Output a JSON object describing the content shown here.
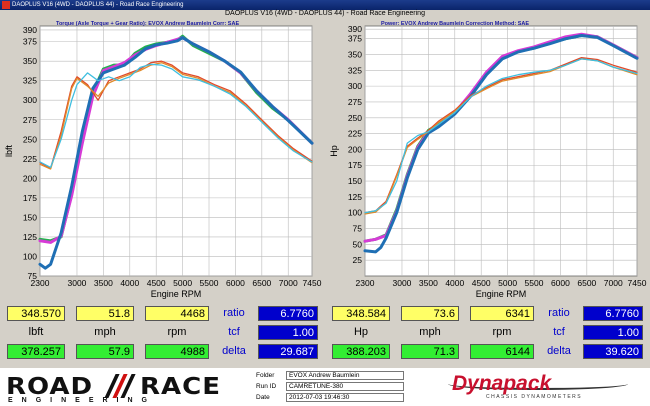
{
  "window": {
    "title": "DAOPLUS V16 (4WD - DAOPLUS 44) - Road Race Engineering"
  },
  "header": {
    "title": "DAOPLUS V16 (4WD - DAOPLUS 44) - Road Race Engineering"
  },
  "colors": {
    "blue": "#1f6fb4",
    "green": "#22b14c",
    "magenta": "#d63bd6",
    "cyan": "#3fbfe0",
    "red": "#e04a2a",
    "orange": "#e08a2a"
  },
  "chart_data": [
    {
      "type": "line",
      "subtitle": "Torque (Axle Torque + Gear Ratio): EVOX Andrew Baumlein    Corr: SAE",
      "ylabel": "lbft",
      "xlabel": "Engine RPM",
      "xlim": [
        2300,
        7450
      ],
      "ylim": [
        75,
        395
      ],
      "xticks": [
        "2300",
        "3000",
        "3500",
        "4000",
        "4500",
        "5000",
        "5500",
        "6000",
        "6500",
        "7000",
        "7450"
      ],
      "yticks": [
        "75",
        "100",
        "125",
        "150",
        "175",
        "200",
        "225",
        "250",
        "275",
        "300",
        "325",
        "350",
        "375",
        "390"
      ],
      "series": [
        {
          "color": "#22b14c",
          "x": [
            2300,
            2500,
            2700,
            2900,
            3100,
            3300,
            3500,
            3700,
            3900,
            4100,
            4300,
            4500,
            4700,
            4900,
            5000,
            5200,
            5500,
            5800,
            6100,
            6400,
            6700,
            7000,
            7450
          ],
          "y": [
            122,
            120,
            125,
            180,
            250,
            310,
            340,
            345,
            345,
            360,
            368,
            372,
            374,
            377,
            382,
            370,
            360,
            350,
            335,
            310,
            290,
            275,
            245
          ]
        },
        {
          "color": "#d63bd6",
          "x": [
            2300,
            2500,
            2700,
            2900,
            3100,
            3300,
            3500,
            3700,
            3900,
            4100,
            4300,
            4500,
            4700,
            4900,
            5000,
            5200,
            5500,
            5800,
            6100,
            6400,
            6700,
            7000,
            7450
          ],
          "y": [
            120,
            118,
            126,
            178,
            245,
            305,
            338,
            343,
            348,
            358,
            365,
            370,
            374,
            378,
            380,
            372,
            362,
            350,
            335,
            312,
            292,
            275,
            245
          ]
        },
        {
          "color": "#1f6fb4",
          "x": [
            2300,
            2400,
            2500,
            2700,
            2900,
            3100,
            3300,
            3500,
            3700,
            3900,
            4100,
            4300,
            4500,
            4700,
            4900,
            5000,
            5200,
            5500,
            5800,
            6100,
            6400,
            6700,
            7000,
            7450
          ],
          "y": [
            90,
            85,
            90,
            130,
            190,
            260,
            315,
            335,
            340,
            345,
            355,
            366,
            371,
            373,
            376,
            380,
            372,
            362,
            350,
            336,
            312,
            292,
            274,
            245
          ]
        },
        {
          "color": "#e04a2a",
          "x": [
            2300,
            2500,
            2700,
            2900,
            3000,
            3200,
            3400,
            3600,
            3800,
            4000,
            4200,
            4400,
            4600,
            4800,
            5000,
            5300,
            5600,
            5900,
            6200,
            6500,
            6800,
            7100,
            7450
          ],
          "y": [
            220,
            213,
            260,
            318,
            330,
            320,
            300,
            325,
            330,
            335,
            340,
            348,
            350,
            345,
            335,
            330,
            320,
            312,
            295,
            275,
            255,
            238,
            222
          ]
        },
        {
          "color": "#e08a2a",
          "x": [
            2300,
            2500,
            2700,
            2900,
            3000,
            3200,
            3400,
            3600,
            3800,
            4000,
            4200,
            4400,
            4600,
            4800,
            5000,
            5300,
            5600,
            5900,
            6200,
            6500,
            6800,
            7100,
            7450
          ],
          "y": [
            218,
            212,
            255,
            315,
            328,
            318,
            305,
            322,
            328,
            333,
            338,
            345,
            348,
            343,
            333,
            328,
            318,
            310,
            293,
            273,
            253,
            236,
            220
          ]
        },
        {
          "color": "#3fbfe0",
          "x": [
            2300,
            2500,
            2700,
            2900,
            3000,
            3200,
            3400,
            3600,
            3800,
            4000,
            4200,
            4400,
            4600,
            4800,
            5000,
            5300,
            5600,
            5900,
            6200,
            6500,
            6800,
            7100,
            7450
          ],
          "y": [
            221,
            214,
            250,
            300,
            320,
            335,
            325,
            330,
            325,
            330,
            342,
            346,
            345,
            340,
            330,
            326,
            318,
            308,
            292,
            272,
            252,
            235,
            221
          ]
        }
      ]
    },
    {
      "type": "line",
      "subtitle": "Power: EVOX Andrew Baumlein    Correction Method: SAE",
      "ylabel": "Hp",
      "xlabel": "Engine RPM",
      "xlim": [
        2300,
        7450
      ],
      "ylim": [
        0,
        395
      ],
      "xticks": [
        "2300",
        "3000",
        "3500",
        "4000",
        "4500",
        "5000",
        "5500",
        "6000",
        "6500",
        "7000",
        "7450"
      ],
      "yticks": [
        "25",
        "50",
        "75",
        "100",
        "125",
        "150",
        "175",
        "200",
        "225",
        "250",
        "275",
        "300",
        "325",
        "350",
        "375",
        "390"
      ],
      "series": [
        {
          "color": "#22b14c",
          "x": [
            2300,
            2500,
            2700,
            2900,
            3100,
            3300,
            3500,
            3700,
            4000,
            4300,
            4600,
            4900,
            5200,
            5500,
            5800,
            6100,
            6400,
            6700,
            7000,
            7450
          ],
          "y": [
            55,
            58,
            65,
            105,
            160,
            205,
            230,
            240,
            258,
            285,
            320,
            345,
            355,
            360,
            368,
            375,
            380,
            378,
            365,
            345
          ]
        },
        {
          "color": "#d63bd6",
          "x": [
            2300,
            2500,
            2700,
            2900,
            3100,
            3300,
            3500,
            3700,
            4000,
            4300,
            4600,
            4900,
            5200,
            5500,
            5800,
            6100,
            6400,
            6700,
            7000,
            7450
          ],
          "y": [
            55,
            58,
            64,
            102,
            158,
            203,
            228,
            238,
            258,
            288,
            322,
            347,
            356,
            362,
            370,
            378,
            382,
            378,
            365,
            345
          ]
        },
        {
          "color": "#1f6fb4",
          "x": [
            2300,
            2500,
            2600,
            2700,
            2900,
            3100,
            3300,
            3500,
            3700,
            4000,
            4300,
            4600,
            4900,
            5200,
            5500,
            5800,
            6100,
            6400,
            6700,
            7000,
            7450
          ],
          "y": [
            40,
            38,
            45,
            60,
            100,
            155,
            200,
            226,
            236,
            256,
            284,
            318,
            343,
            354,
            360,
            367,
            375,
            380,
            377,
            364,
            344
          ]
        },
        {
          "color": "#e04a2a",
          "x": [
            2300,
            2500,
            2700,
            2900,
            3100,
            3300,
            3500,
            3700,
            4000,
            4300,
            4600,
            4900,
            5200,
            5500,
            5800,
            6100,
            6400,
            6700,
            7000,
            7450
          ],
          "y": [
            100,
            103,
            118,
            160,
            205,
            218,
            230,
            245,
            262,
            285,
            298,
            310,
            315,
            320,
            325,
            335,
            345,
            342,
            333,
            322
          ]
        },
        {
          "color": "#e08a2a",
          "x": [
            2300,
            2500,
            2700,
            2900,
            3100,
            3300,
            3500,
            3700,
            4000,
            4300,
            4600,
            4900,
            5200,
            5500,
            5800,
            6100,
            6400,
            6700,
            7000,
            7450
          ],
          "y": [
            98,
            101,
            116,
            158,
            203,
            216,
            228,
            243,
            260,
            283,
            296,
            308,
            313,
            318,
            323,
            333,
            343,
            340,
            330,
            318
          ]
        },
        {
          "color": "#3fbfe0",
          "x": [
            2300,
            2500,
            2700,
            2900,
            3100,
            3300,
            3500,
            3700,
            4000,
            4300,
            4600,
            4900,
            5200,
            5500,
            5800,
            6100,
            6400,
            6700,
            7000,
            7450
          ],
          "y": [
            100,
            103,
            115,
            150,
            210,
            222,
            228,
            240,
            258,
            283,
            300,
            312,
            318,
            322,
            325,
            333,
            343,
            340,
            330,
            320
          ]
        }
      ]
    }
  ],
  "readouts": [
    {
      "row1": {
        "val1": "348.570",
        "val2": "51.8",
        "val3": "4468"
      },
      "labels": {
        "l1": "lbft",
        "l2": "mph",
        "l3": "rpm"
      },
      "row2": {
        "val1": "378.257",
        "val2": "57.9",
        "val3": "4988"
      },
      "ratio_label": "ratio",
      "ratio": "6.7760",
      "tcf_label": "tcf",
      "tcf": "1.00",
      "delta_label": "delta",
      "delta": "29.687"
    },
    {
      "row1": {
        "val1": "348.584",
        "val2": "73.6",
        "val3": "6341"
      },
      "labels": {
        "l1": "Hp",
        "l2": "mph",
        "l3": "rpm"
      },
      "row2": {
        "val1": "388.203",
        "val2": "71.3",
        "val3": "6144"
      },
      "ratio_label": "ratio",
      "ratio": "6.7760",
      "tcf_label": "tcf",
      "tcf": "1.00",
      "delta_label": "delta",
      "delta": "39.620"
    }
  ],
  "footer": {
    "logo_left": "ROAD",
    "logo_right": "RACE",
    "logo_sub": "ENGINEERING",
    "folder_label": "Folder",
    "folder": "EVOX Andrew Baumlein",
    "runid_label": "Run ID",
    "runid": "CAMRETUNE-380",
    "date_label": "Date",
    "date": "2012-07-03 19:46:30",
    "dyna": "Dynapack",
    "dyna_sub": "CHASSIS DYNAMOMETERS"
  }
}
